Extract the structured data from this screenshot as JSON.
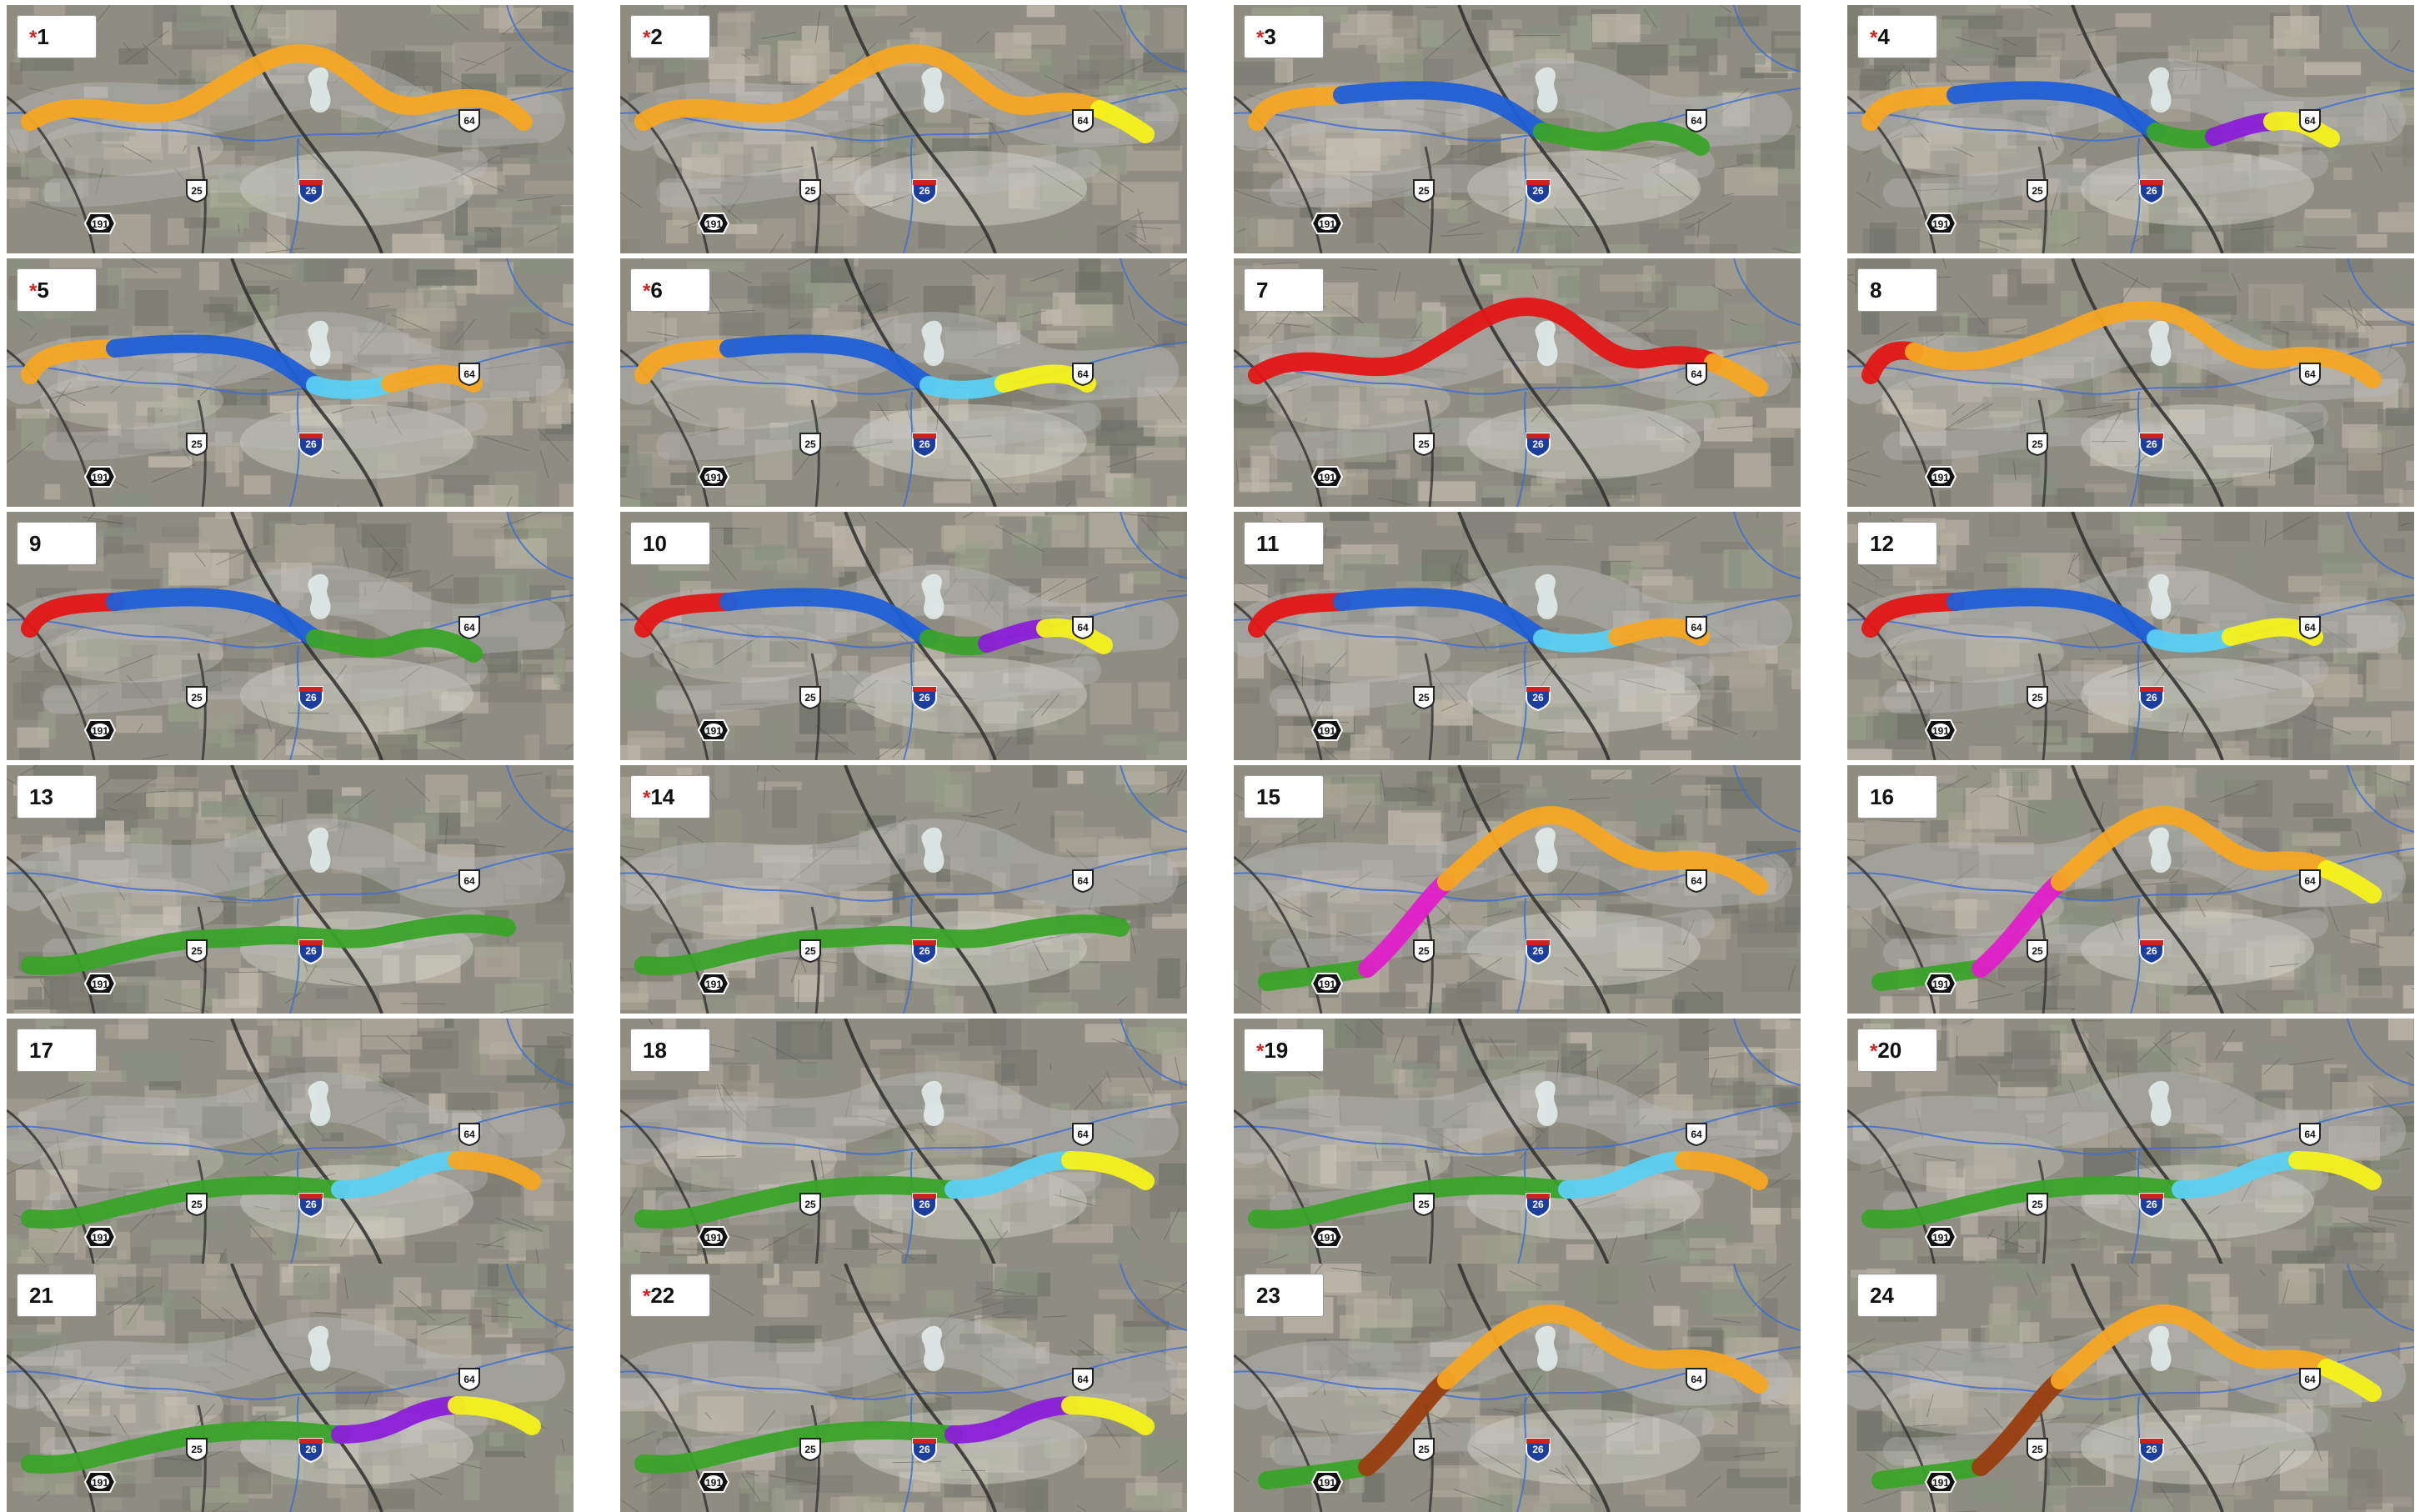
{
  "colors": {
    "orange": "#f6a623",
    "yellow": "#f5f21a",
    "blue": "#1f5fd6",
    "green": "#3aa329",
    "purple": "#8a1fd8",
    "red": "#e31616",
    "cyan": "#5cd0f2",
    "magenta": "#e01ec9",
    "brown": "#9a3d10"
  },
  "shields": {
    "us64": "64",
    "i26": "26",
    "us25": "25",
    "nc191": "191"
  },
  "alternatives": [
    {
      "num": "1",
      "starred": true,
      "route": "north",
      "segments": [
        "orange"
      ]
    },
    {
      "num": "2",
      "starred": true,
      "route": "north",
      "segments": [
        "orange",
        "yellow"
      ]
    },
    {
      "num": "3",
      "starred": true,
      "route": "central",
      "segments": [
        "orange",
        "blue",
        "green"
      ]
    },
    {
      "num": "4",
      "starred": true,
      "route": "central",
      "segments": [
        "orange",
        "blue",
        "green",
        "purple",
        "yellow"
      ]
    },
    {
      "num": "5",
      "starred": true,
      "route": "central",
      "segments": [
        "orange",
        "blue",
        "cyan",
        "orange"
      ]
    },
    {
      "num": "6",
      "starred": true,
      "route": "central",
      "segments": [
        "orange",
        "blue",
        "cyan",
        "yellow"
      ]
    },
    {
      "num": "7",
      "starred": false,
      "route": "north",
      "segments": [
        "red",
        "orange"
      ]
    },
    {
      "num": "8",
      "starred": false,
      "route": "north",
      "segments": [
        "red",
        "orange",
        "yellow"
      ]
    },
    {
      "num": "9",
      "starred": false,
      "route": "central",
      "segments": [
        "red",
        "blue",
        "green"
      ]
    },
    {
      "num": "10",
      "starred": false,
      "route": "central",
      "segments": [
        "red",
        "blue",
        "green",
        "purple",
        "yellow"
      ]
    },
    {
      "num": "11",
      "starred": false,
      "route": "central",
      "segments": [
        "red",
        "blue",
        "cyan",
        "orange"
      ]
    },
    {
      "num": "12",
      "starred": false,
      "route": "central",
      "segments": [
        "red",
        "blue",
        "cyan",
        "yellow"
      ]
    },
    {
      "num": "13",
      "starred": false,
      "route": "south",
      "segments": [
        "green"
      ]
    },
    {
      "num": "14",
      "starred": true,
      "route": "south",
      "segments": [
        "green"
      ]
    },
    {
      "num": "15",
      "starred": false,
      "route": "west",
      "segments": [
        "green",
        "magenta",
        "orange"
      ]
    },
    {
      "num": "16",
      "starred": false,
      "route": "west",
      "segments": [
        "green",
        "magenta",
        "orange",
        "yellow"
      ]
    },
    {
      "num": "17",
      "starred": false,
      "route": "south",
      "segments": [
        "green",
        "cyan",
        "orange"
      ]
    },
    {
      "num": "18",
      "starred": false,
      "route": "south",
      "segments": [
        "green",
        "cyan",
        "yellow"
      ]
    },
    {
      "num": "19",
      "starred": true,
      "route": "south",
      "segments": [
        "green",
        "cyan",
        "orange"
      ]
    },
    {
      "num": "20",
      "starred": true,
      "route": "south",
      "segments": [
        "green",
        "cyan",
        "yellow"
      ]
    },
    {
      "num": "21",
      "starred": false,
      "route": "south",
      "segments": [
        "green",
        "purple",
        "yellow"
      ]
    },
    {
      "num": "22",
      "starred": true,
      "route": "south",
      "segments": [
        "green",
        "purple",
        "yellow"
      ]
    },
    {
      "num": "23",
      "starred": false,
      "route": "west",
      "segments": [
        "green",
        "brown",
        "orange"
      ]
    },
    {
      "num": "24",
      "starred": false,
      "route": "west",
      "segments": [
        "green",
        "brown",
        "orange",
        "yellow"
      ]
    }
  ]
}
